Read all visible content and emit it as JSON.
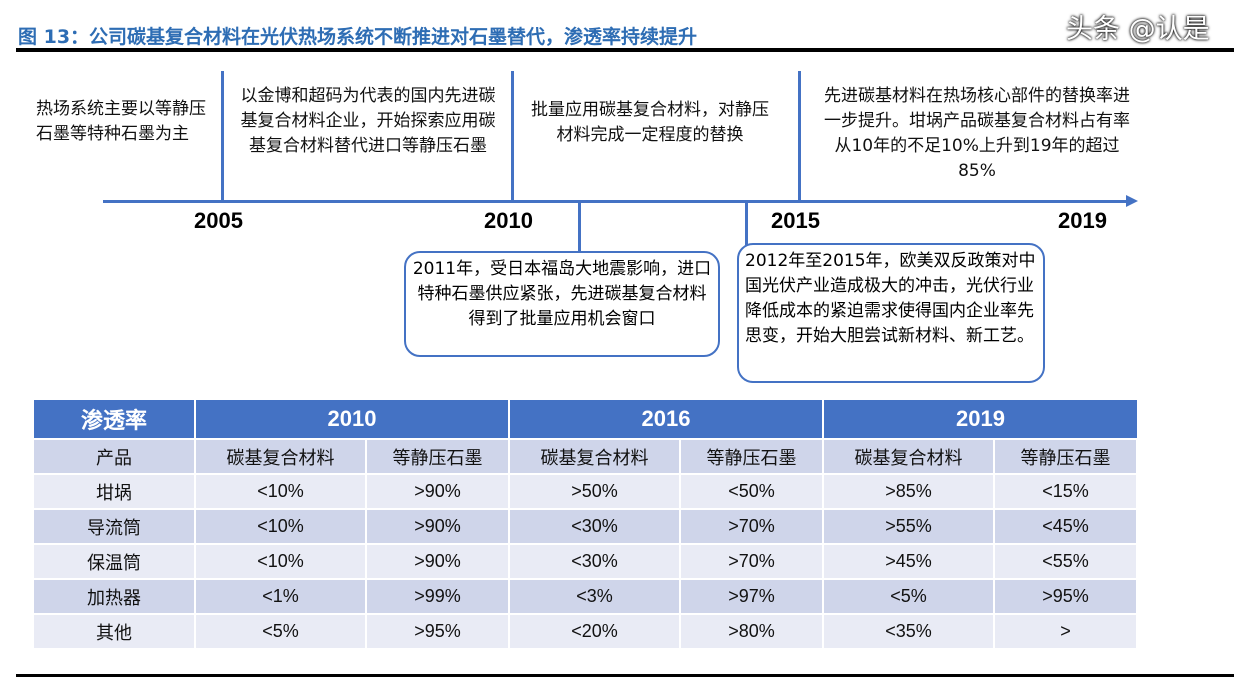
{
  "title": "图 13：公司碳基复合材料在光伏热场系统不断推进对石墨替代，渗透率持续提升",
  "timeline": {
    "years": [
      "2005",
      "2010",
      "2015",
      "2019"
    ],
    "above": [
      "热场系统主要以等静压石墨等特种石墨为主",
      "以金博和超码为代表的国内先进碳基复合材料企业，开始探索应用碳基复合材料替代进口等静压石墨",
      "批量应用碳基复合材料，对静压材料完成一定程度的替换",
      "先进碳基材料在热场核心部件的替换率进一步提升。坩埚产品碳基复合材料占有率从10年的不足10%上升到19年的超过85%"
    ],
    "below": [
      "2011年，受日本福岛大地震影响，进口特种石墨供应紧张，先进碳基复合材料得到了批量应用机会窗口",
      "2012年至2015年，欧美双反政策对中国光伏产业造成极大的冲击，光伏行业降低成本的紧迫需求使得国内企业率先思变，开始大胆尝试新材料、新工艺。"
    ]
  },
  "table": {
    "corner": "渗透率",
    "years": [
      "2010",
      "2016",
      "2019"
    ],
    "subheader": [
      "产品",
      "碳基复合材料",
      "等静压石墨",
      "碳基复合材料",
      "等静压石墨",
      "碳基复合材料",
      "等静压石墨"
    ],
    "rows": [
      [
        "坩埚",
        "<10%",
        ">90%",
        ">50%",
        "<50%",
        ">85%",
        "<15%"
      ],
      [
        "导流筒",
        "<10%",
        ">90%",
        "<30%",
        ">70%",
        ">55%",
        "<45%"
      ],
      [
        "保温筒",
        "<10%",
        ">90%",
        "<30%",
        ">70%",
        ">45%",
        "<55%"
      ],
      [
        "加热器",
        "<1%",
        ">99%",
        "<3%",
        ">97%",
        "<5%",
        ">95%"
      ],
      [
        "其他",
        "<5%",
        ">95%",
        "<20%",
        ">80%",
        "<35%",
        ">"
      ]
    ]
  },
  "watermark": "头条 @认是",
  "colors": {
    "accent": "#4472c4",
    "title": "#2e6db4",
    "row_odd": "#cfd5ea",
    "row_even": "#e9ebf5"
  }
}
